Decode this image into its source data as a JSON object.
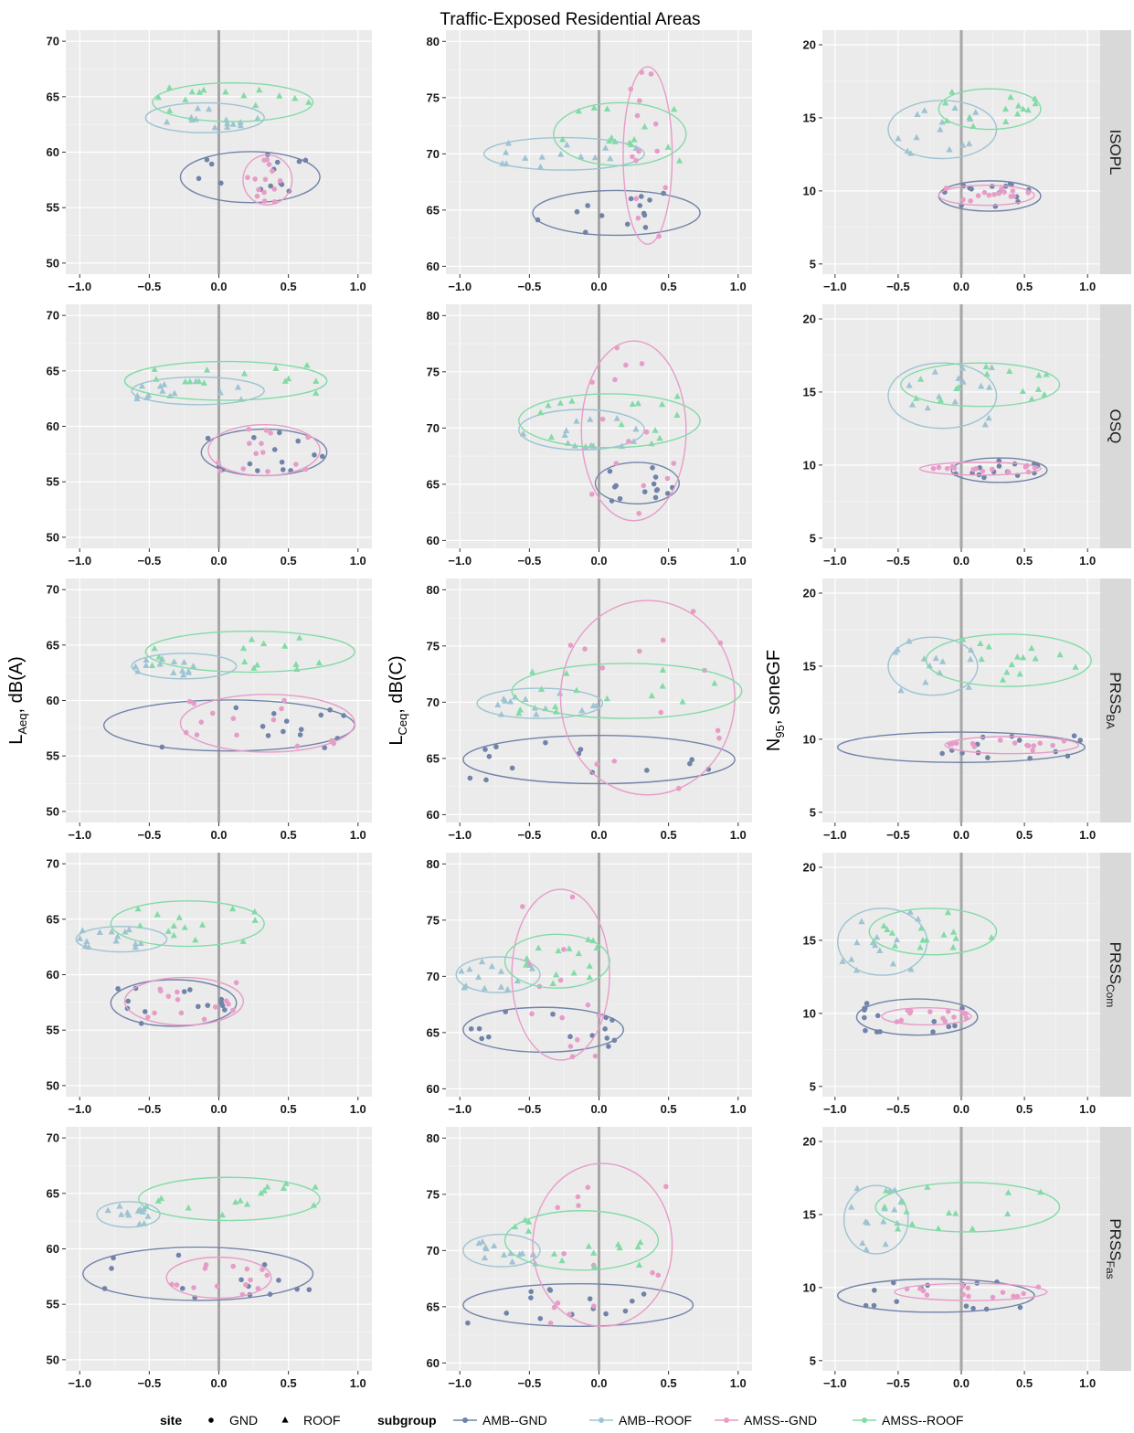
{
  "chart_data": {
    "type": "scatter",
    "title": "Traffic-Exposed Residential Areas",
    "facet_rows": [
      {
        "id": "ISOPL",
        "label": "ISOPL",
        "sub": ""
      },
      {
        "id": "OSQ",
        "label": "OSQ",
        "sub": ""
      },
      {
        "id": "PRSS_BA",
        "label": "PRSS",
        "sub": "BA"
      },
      {
        "id": "PRSS_Com",
        "label": "PRSS",
        "sub": "Com"
      },
      {
        "id": "PRSS_Fas",
        "label": "PRSS",
        "sub": "Fas"
      }
    ],
    "facet_columns": [
      {
        "metric": "LAeq",
        "ylabel_main": "L",
        "ylabel_sub": "Aeq",
        "ylabel_unit": ", dB(A)",
        "ylim": [
          49,
          71
        ],
        "yticks": [
          50,
          55,
          60,
          65,
          70
        ]
      },
      {
        "metric": "LCeq",
        "ylabel_main": "L",
        "ylabel_sub": "Ceq",
        "ylabel_unit": ", dB(C)",
        "ylim": [
          59.3,
          81
        ],
        "yticks": [
          60,
          65,
          70,
          75,
          80
        ]
      },
      {
        "metric": "N95",
        "ylabel_main": "N",
        "ylabel_sub": "95",
        "ylabel_unit": ", soneGF",
        "ylim": [
          4.3,
          21
        ],
        "yticks": [
          5,
          10,
          15,
          20
        ]
      }
    ],
    "x_ticks": [
      -1.0,
      -0.5,
      0.0,
      0.5,
      1.0
    ],
    "x_tick_labels": [
      "−1.0",
      "−0.5",
      "0.0",
      "0.5",
      "1.0"
    ],
    "xlim_full": [
      -1.1,
      1.1
    ],
    "xlim_com": [
      -1.1,
      1.1
    ],
    "reference_line_x": 0,
    "grid": true,
    "legend_placement": "bottom",
    "legend": {
      "site_title": "site",
      "site_items": [
        {
          "label": "GND",
          "shape": "circle"
        },
        {
          "label": "ROOF",
          "shape": "triangle"
        }
      ],
      "subgroup_title": "subgroup",
      "subgroup_items": [
        {
          "label": "AMB--GND",
          "color": "#7183a8"
        },
        {
          "label": "AMB--ROOF",
          "color": "#9ec3d2"
        },
        {
          "label": "AMSS--GND",
          "color": "#e79cc8"
        },
        {
          "label": "AMSS--ROOF",
          "color": "#82dba6"
        }
      ]
    },
    "colors": {
      "AMB--GND": "#7183a8",
      "AMB--ROOF": "#9ec3d2",
      "AMSS--GND": "#e79cc8",
      "AMSS--ROOF": "#82dba6",
      "panel_bg": "#ebebeb",
      "strip_bg": "#d9d9d9",
      "grid": "#ffffff",
      "ref_line": "#a6a6a6"
    },
    "subgroup_summary": [
      {
        "row": "ISOPL",
        "metric": "LAeq",
        "AMB--GND": {
          "x": [
            -0.25,
            0.7
          ],
          "y": [
            55.7,
            59.8
          ]
        },
        "AMB--ROOF": {
          "x": [
            -0.5,
            0.3
          ],
          "y": [
            62.0,
            64.2
          ]
        },
        "AMSS--GND": {
          "x": [
            0.2,
            0.5
          ],
          "y": [
            55.5,
            59.5
          ]
        },
        "AMSS--ROOF": {
          "x": [
            -0.45,
            0.65
          ],
          "y": [
            63.0,
            66.0
          ]
        }
      },
      {
        "row": "ISOPL",
        "metric": "LCeq",
        "AMB--GND": {
          "x": [
            -0.45,
            0.7
          ],
          "y": [
            63.0,
            66.5
          ]
        },
        "AMB--ROOF": {
          "x": [
            -0.8,
            0.3
          ],
          "y": [
            68.8,
            71.2
          ]
        },
        "AMSS--GND": {
          "x": [
            0.2,
            0.5
          ],
          "y": [
            62.2,
            77.5
          ]
        },
        "AMSS--ROOF": {
          "x": [
            -0.3,
            0.6
          ],
          "y": [
            69.2,
            74.3
          ]
        }
      },
      {
        "row": "ISOPL",
        "metric": "N95",
        "AMB--GND": {
          "x": [
            -0.15,
            0.6
          ],
          "y": [
            8.8,
            10.5
          ]
        },
        "AMB--ROOF": {
          "x": [
            -0.55,
            0.25
          ],
          "y": [
            12.4,
            16.0
          ]
        },
        "AMSS--GND": {
          "x": [
            -0.15,
            0.55
          ],
          "y": [
            9.2,
            10.2
          ]
        },
        "AMSS--ROOF": {
          "x": [
            -0.15,
            0.6
          ],
          "y": [
            14.4,
            16.8
          ]
        }
      },
      {
        "row": "OSQ",
        "metric": "LAeq",
        "AMB--GND": {
          "x": [
            -0.1,
            0.75
          ],
          "y": [
            55.8,
            59.5
          ]
        },
        "AMB--ROOF": {
          "x": [
            -0.6,
            0.3
          ],
          "y": [
            62.2,
            64.2
          ]
        },
        "AMSS--GND": {
          "x": [
            -0.05,
            0.7
          ],
          "y": [
            55.8,
            59.9
          ]
        },
        "AMSS--ROOF": {
          "x": [
            -0.65,
            0.75
          ],
          "y": [
            62.6,
            65.6
          ]
        }
      },
      {
        "row": "OSQ",
        "metric": "LCeq",
        "AMB--GND": {
          "x": [
            0.0,
            0.55
          ],
          "y": [
            63.5,
            66.7
          ]
        },
        "AMB--ROOF": {
          "x": [
            -0.55,
            0.3
          ],
          "y": [
            68.3,
            71.4
          ]
        },
        "AMSS--GND": {
          "x": [
            -0.1,
            0.6
          ],
          "y": [
            62.0,
            77.5
          ]
        },
        "AMSS--ROOF": {
          "x": [
            -0.55,
            0.7
          ],
          "y": [
            68.5,
            72.8
          ]
        }
      },
      {
        "row": "OSQ",
        "metric": "N95",
        "AMB--GND": {
          "x": [
            -0.05,
            0.65
          ],
          "y": [
            9.0,
            10.3
          ]
        },
        "AMB--ROOF": {
          "x": [
            -0.55,
            0.25
          ],
          "y": [
            12.7,
            16.8
          ]
        },
        "AMSS--GND": {
          "x": [
            -0.3,
            0.6
          ],
          "y": [
            9.5,
            10.0
          ]
        },
        "AMSS--ROOF": {
          "x": [
            -0.45,
            0.75
          ],
          "y": [
            14.2,
            16.8
          ]
        }
      },
      {
        "row": "PRSS_BA",
        "metric": "LAeq",
        "AMB--GND": {
          "x": [
            -0.8,
            0.95
          ],
          "y": [
            55.7,
            59.8
          ]
        },
        "AMB--ROOF": {
          "x": [
            -0.6,
            0.1
          ],
          "y": [
            62.2,
            64.0
          ]
        },
        "AMSS--GND": {
          "x": [
            -0.25,
            0.95
          ],
          "y": [
            55.6,
            60.3
          ]
        },
        "AMSS--ROOF": {
          "x": [
            -0.5,
            0.95
          ],
          "y": [
            62.8,
            66.0
          ]
        }
      },
      {
        "row": "PRSS_BA",
        "metric": "LCeq",
        "AMB--GND": {
          "x": [
            -0.95,
            0.95
          ],
          "y": [
            63.0,
            66.8
          ]
        },
        "AMB--ROOF": {
          "x": [
            -0.85,
            0.0
          ],
          "y": [
            68.8,
            71.0
          ]
        },
        "AMSS--GND": {
          "x": [
            -0.25,
            0.95
          ],
          "y": [
            62.0,
            78.8
          ]
        },
        "AMSS--ROOF": {
          "x": [
            -0.6,
            1.0
          ],
          "y": [
            68.8,
            73.2
          ]
        }
      },
      {
        "row": "PRSS_BA",
        "metric": "N95",
        "AMB--GND": {
          "x": [
            -0.95,
            0.95
          ],
          "y": [
            8.6,
            10.3
          ]
        },
        "AMB--ROOF": {
          "x": [
            -0.55,
            0.1
          ],
          "y": [
            13.2,
            16.8
          ]
        },
        "AMSS--GND": {
          "x": [
            -0.1,
            0.9
          ],
          "y": [
            9.2,
            10.0
          ]
        },
        "AMSS--ROOF": {
          "x": [
            -0.25,
            1.0
          ],
          "y": [
            13.8,
            17.0
          ]
        }
      },
      {
        "row": "PRSS_Com",
        "metric": "LAeq",
        "AMB--GND": {
          "x": [
            -0.75,
            0.1
          ],
          "y": [
            55.6,
            59.3
          ]
        },
        "AMB--ROOF": {
          "x": [
            -1.0,
            -0.4
          ],
          "y": [
            62.3,
            64.1
          ]
        },
        "AMSS--GND": {
          "x": [
            -0.65,
            0.15
          ],
          "y": [
            55.7,
            59.5
          ]
        },
        "AMSS--ROOF": {
          "x": [
            -0.75,
            0.3
          ],
          "y": [
            62.8,
            66.4
          ]
        }
      },
      {
        "row": "PRSS_Com",
        "metric": "LCeq",
        "AMB--GND": {
          "x": [
            -0.95,
            0.15
          ],
          "y": [
            63.5,
            67.0
          ]
        },
        "AMB--ROOF": {
          "x": [
            -1.0,
            -0.45
          ],
          "y": [
            68.8,
            71.5
          ]
        },
        "AMSS--GND": {
          "x": [
            -0.6,
            0.05
          ],
          "y": [
            62.8,
            77.5
          ]
        },
        "AMSS--ROOF": {
          "x": [
            -0.65,
            0.05
          ],
          "y": [
            69.2,
            73.5
          ]
        }
      },
      {
        "row": "PRSS_Com",
        "metric": "N95",
        "AMB--GND": {
          "x": [
            -0.8,
            0.1
          ],
          "y": [
            8.7,
            10.8
          ]
        },
        "AMB--ROOF": {
          "x": [
            -0.95,
            -0.3
          ],
          "y": [
            12.8,
            17.0
          ]
        },
        "AMSS--GND": {
          "x": [
            -0.6,
            0.05
          ],
          "y": [
            9.4,
            10.2
          ]
        },
        "AMSS--ROOF": {
          "x": [
            -0.7,
            0.25
          ],
          "y": [
            14.2,
            17.0
          ]
        }
      },
      {
        "row": "PRSS_Fas",
        "metric": "LAeq",
        "AMB--GND": {
          "x": [
            -0.95,
            0.65
          ],
          "y": [
            55.6,
            59.9
          ]
        },
        "AMB--ROOF": {
          "x": [
            -0.85,
            -0.45
          ],
          "y": [
            62.2,
            64.0
          ]
        },
        "AMSS--GND": {
          "x": [
            -0.35,
            0.35
          ],
          "y": [
            55.8,
            59.0
          ]
        },
        "AMSS--ROOF": {
          "x": [
            -0.55,
            0.7
          ],
          "y": [
            62.8,
            66.2
          ]
        }
      },
      {
        "row": "PRSS_Fas",
        "metric": "LCeq",
        "AMB--GND": {
          "x": [
            -0.95,
            0.65
          ],
          "y": [
            63.5,
            66.8
          ]
        },
        "AMB--ROOF": {
          "x": [
            -0.95,
            -0.45
          ],
          "y": [
            68.8,
            71.2
          ]
        },
        "AMSS--GND": {
          "x": [
            -0.45,
            0.5
          ],
          "y": [
            63.5,
            77.5
          ]
        },
        "AMSS--ROOF": {
          "x": [
            -0.65,
            0.4
          ],
          "y": [
            68.5,
            73.3
          ]
        }
      },
      {
        "row": "PRSS_Fas",
        "metric": "N95",
        "AMB--GND": {
          "x": [
            -0.95,
            0.55
          ],
          "y": [
            8.5,
            10.4
          ]
        },
        "AMB--ROOF": {
          "x": [
            -0.9,
            -0.45
          ],
          "y": [
            12.5,
            16.8
          ]
        },
        "AMSS--GND": {
          "x": [
            -0.5,
            0.65
          ],
          "y": [
            9.3,
            10.1
          ]
        },
        "AMSS--ROOF": {
          "x": [
            -0.65,
            0.75
          ],
          "y": [
            14.0,
            17.0
          ]
        }
      }
    ]
  }
}
